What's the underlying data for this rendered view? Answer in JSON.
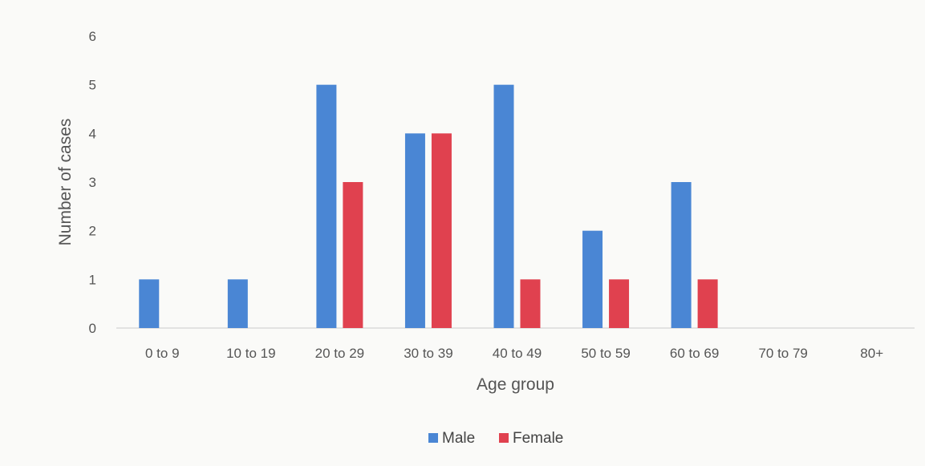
{
  "chart_data": {
    "type": "bar",
    "categories": [
      "0 to 9",
      "10 to 19",
      "20 to 29",
      "30 to 39",
      "40 to 49",
      "50 to 59",
      "60 to 69",
      "70 to 79",
      "80+"
    ],
    "series": [
      {
        "name": "Male",
        "values": [
          1,
          1,
          5,
          4,
          5,
          2,
          3,
          0,
          0
        ],
        "color": "#4a86d4"
      },
      {
        "name": "Female",
        "values": [
          0,
          0,
          3,
          4,
          1,
          1,
          1,
          0,
          0
        ],
        "color": "#e0414f"
      }
    ],
    "title": "",
    "xlabel": "Age group",
    "ylabel": "Number of cases",
    "ylim": [
      0,
      6
    ],
    "yticks": [
      0,
      1,
      2,
      3,
      4,
      5,
      6
    ],
    "grid": false,
    "legend_position": "bottom"
  }
}
